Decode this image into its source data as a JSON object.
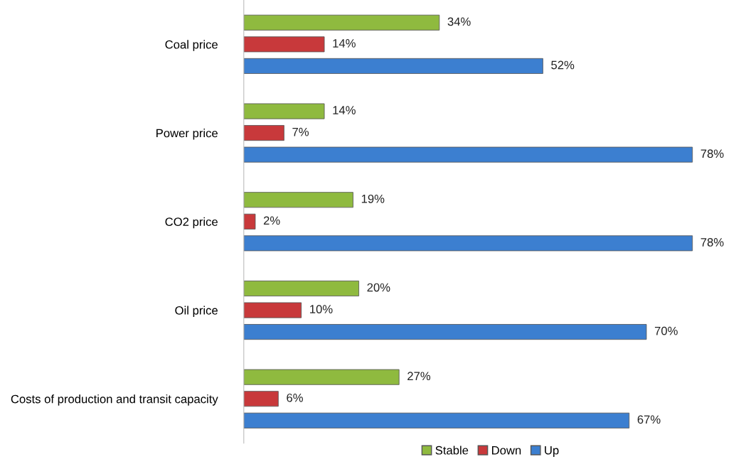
{
  "chart_data": {
    "type": "bar",
    "orientation": "horizontal",
    "categories": [
      "Coal price",
      "Power price",
      "CO2 price",
      "Oil price",
      "Costs of production and transit capacity"
    ],
    "series": [
      {
        "name": "Stable",
        "color": "#8fba3f",
        "values": [
          34,
          14,
          19,
          20,
          27
        ],
        "value_labels": [
          "34%",
          "14%",
          "19%",
          "20%",
          "27%"
        ]
      },
      {
        "name": "Down",
        "color": "#c8393b",
        "values": [
          14,
          7,
          2,
          10,
          6
        ],
        "value_labels": [
          "14%",
          "7%",
          "2%",
          "10%",
          "6%"
        ]
      },
      {
        "name": "Up",
        "color": "#3c7fd0",
        "values": [
          52,
          78,
          78,
          70,
          67
        ],
        "value_labels": [
          "52%",
          "78%",
          "78%",
          "70%",
          "67%"
        ]
      }
    ],
    "legend": "bottom",
    "grid": false,
    "tick_labels": "y"
  }
}
